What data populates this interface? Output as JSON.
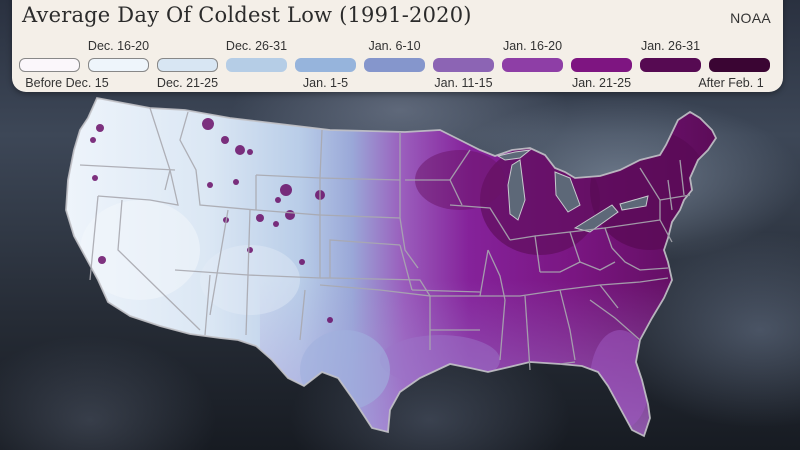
{
  "header": {
    "title": "Average Day Of Coldest Low (1991-2020)",
    "source": "NOAA"
  },
  "legend": {
    "items": [
      {
        "label": "Before Dec. 15",
        "color": "#fbf7fb",
        "position": "bottom",
        "outlined": true
      },
      {
        "label": "Dec. 16-20",
        "color": "#eef5fb",
        "position": "top",
        "outlined": true
      },
      {
        "label": "Dec. 21-25",
        "color": "#d8e6f3",
        "position": "bottom",
        "outlined": true
      },
      {
        "label": "Dec. 26-31",
        "color": "#b5cde6",
        "position": "top",
        "outlined": false
      },
      {
        "label": "Jan. 1-5",
        "color": "#96b4dc",
        "position": "bottom",
        "outlined": false
      },
      {
        "label": "Jan. 6-10",
        "color": "#8596cc",
        "position": "top",
        "outlined": false
      },
      {
        "label": "Jan. 11-15",
        "color": "#8c64b4",
        "position": "bottom",
        "outlined": false
      },
      {
        "label": "Jan. 16-20",
        "color": "#8e3ea6",
        "position": "top",
        "outlined": false
      },
      {
        "label": "Jan. 21-25",
        "color": "#7e1581",
        "position": "bottom",
        "outlined": false
      },
      {
        "label": "Jan. 26-31",
        "color": "#560a52",
        "position": "top",
        "outlined": false
      },
      {
        "label": "After Feb. 1",
        "color": "#3a0533",
        "position": "bottom",
        "outlined": false
      }
    ]
  },
  "map": {
    "region": "Contiguous United States",
    "description": "Western US mostly Dec. 16-31 (light blue/white) with purple hot spots in mountain areas; Plains transition Jan. 1-20; Midwest, Great Lakes and Northeast Jan. 21-31 (dark purple); Gulf Coast and Florida Jan. 11-20.",
    "state_border_color": "#a8a8ae"
  }
}
